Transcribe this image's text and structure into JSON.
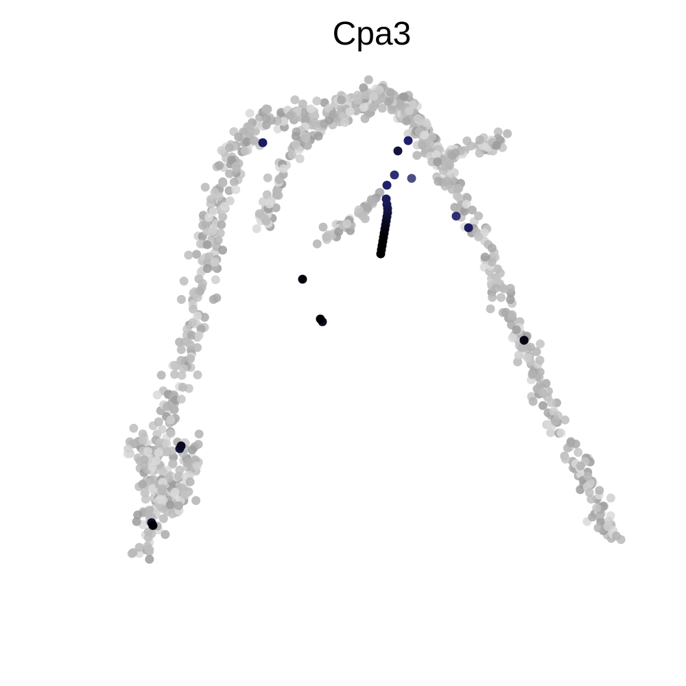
{
  "chart_data": {
    "type": "scatter",
    "title": "Cpa3",
    "xlabel": "",
    "ylabel": "",
    "axes_visible": false,
    "grid": false,
    "legend": "none",
    "xlim": [
      0,
      100
    ],
    "ylim": [
      0,
      100
    ],
    "color_scale": {
      "low": "#bdbdbd",
      "mid": "#1f1f6b",
      "high": "#000000"
    },
    "branches": [
      {
        "name": "left-arm",
        "path": [
          [
            20.5,
            18.5
          ],
          [
            21.5,
            22
          ],
          [
            22,
            26
          ],
          [
            22.5,
            30
          ],
          [
            23,
            34
          ],
          [
            24,
            38
          ],
          [
            25,
            42
          ],
          [
            26.5,
            46
          ],
          [
            28,
            52
          ],
          [
            29.5,
            58
          ],
          [
            30.5,
            64
          ],
          [
            31.5,
            70
          ],
          [
            33,
            75
          ],
          [
            35,
            79
          ],
          [
            37.5,
            81.5
          ],
          [
            40.5,
            83
          ],
          [
            44,
            83.5
          ],
          [
            47.5,
            83
          ]
        ],
        "spread": 1.6,
        "count": 320
      },
      {
        "name": "left-inner-arm",
        "path": [
          [
            38.5,
            67
          ],
          [
            39.5,
            71
          ],
          [
            41,
            75
          ],
          [
            43,
            78.5
          ],
          [
            45.5,
            80.5
          ],
          [
            48,
            81.5
          ]
        ],
        "spread": 1.0,
        "count": 70
      },
      {
        "name": "left-blob",
        "path": [
          [
            19.5,
            36
          ],
          [
            21.5,
            33
          ],
          [
            23,
            30
          ],
          [
            24.5,
            26
          ],
          [
            26,
            31
          ],
          [
            27.5,
            35
          ]
        ],
        "spread": 2.4,
        "count": 160
      },
      {
        "name": "top-cap",
        "path": [
          [
            48,
            83
          ],
          [
            51,
            84.5
          ],
          [
            54,
            85.5
          ],
          [
            56,
            86.5
          ],
          [
            58,
            85
          ],
          [
            60,
            83
          ],
          [
            61.5,
            80.5
          ]
        ],
        "spread": 1.6,
        "count": 200
      },
      {
        "name": "right-arm",
        "path": [
          [
            61.5,
            80.5
          ],
          [
            63.5,
            77
          ],
          [
            65.5,
            74
          ],
          [
            67.5,
            71
          ],
          [
            69,
            67
          ],
          [
            70.5,
            63
          ],
          [
            72.5,
            59
          ],
          [
            74,
            55.5
          ],
          [
            75.5,
            52
          ],
          [
            77.5,
            47
          ],
          [
            79.5,
            42
          ],
          [
            81.5,
            38
          ],
          [
            83.5,
            34
          ],
          [
            85.5,
            29
          ],
          [
            87.5,
            25
          ],
          [
            89.5,
            21.5
          ]
        ],
        "spread": 1.3,
        "count": 260
      },
      {
        "name": "right-spur",
        "path": [
          [
            63,
            76
          ],
          [
            66,
            77.5
          ],
          [
            69,
            78.5
          ],
          [
            71.5,
            79.5
          ],
          [
            73.5,
            79
          ]
        ],
        "spread": 1.1,
        "count": 60
      },
      {
        "name": "center-branch",
        "path": [
          [
            47,
            65.5
          ],
          [
            49.5,
            66.5
          ],
          [
            51.5,
            68
          ],
          [
            53.5,
            70
          ],
          [
            55,
            71.5
          ]
        ],
        "spread": 0.9,
        "count": 40
      }
    ],
    "points": [
      {
        "x": 55.5,
        "y": 63.0,
        "expr": 1.0
      },
      {
        "x": 55.6,
        "y": 63.6,
        "expr": 1.0
      },
      {
        "x": 55.7,
        "y": 64.2,
        "expr": 1.0
      },
      {
        "x": 55.8,
        "y": 64.8,
        "expr": 1.0
      },
      {
        "x": 55.9,
        "y": 65.4,
        "expr": 1.0
      },
      {
        "x": 56.0,
        "y": 66.0,
        "expr": 0.95
      },
      {
        "x": 56.1,
        "y": 66.6,
        "expr": 0.9
      },
      {
        "x": 56.2,
        "y": 67.2,
        "expr": 0.85
      },
      {
        "x": 56.3,
        "y": 67.8,
        "expr": 0.8
      },
      {
        "x": 56.4,
        "y": 68.4,
        "expr": 0.75
      },
      {
        "x": 56.5,
        "y": 69.0,
        "expr": 0.7
      },
      {
        "x": 56.5,
        "y": 69.6,
        "expr": 0.65
      },
      {
        "x": 56.4,
        "y": 70.2,
        "expr": 0.6
      },
      {
        "x": 56.3,
        "y": 71.0,
        "expr": 0.55
      },
      {
        "x": 56.4,
        "y": 73.0,
        "expr": 0.5
      },
      {
        "x": 58.0,
        "y": 78.0,
        "expr": 0.7
      },
      {
        "x": 38.3,
        "y": 79.2,
        "expr": 0.55
      },
      {
        "x": 59.5,
        "y": 79.5,
        "expr": 0.5
      },
      {
        "x": 57.5,
        "y": 74.5,
        "expr": 0.45
      },
      {
        "x": 60.0,
        "y": 74.0,
        "expr": 0.35
      },
      {
        "x": 66.5,
        "y": 68.5,
        "expr": 0.45
      },
      {
        "x": 68.3,
        "y": 66.8,
        "expr": 0.55
      },
      {
        "x": 44.1,
        "y": 59.3,
        "expr": 0.95
      },
      {
        "x": 46.7,
        "y": 53.5,
        "expr": 1.0
      },
      {
        "x": 47.0,
        "y": 53.1,
        "expr": 0.8
      },
      {
        "x": 76.4,
        "y": 50.4,
        "expr": 0.9
      },
      {
        "x": 26.4,
        "y": 35.0,
        "expr": 0.85
      },
      {
        "x": 26.2,
        "y": 34.6,
        "expr": 0.7
      },
      {
        "x": 22.3,
        "y": 23.4,
        "expr": 1.0
      },
      {
        "x": 22.1,
        "y": 23.8,
        "expr": 0.8
      }
    ]
  }
}
